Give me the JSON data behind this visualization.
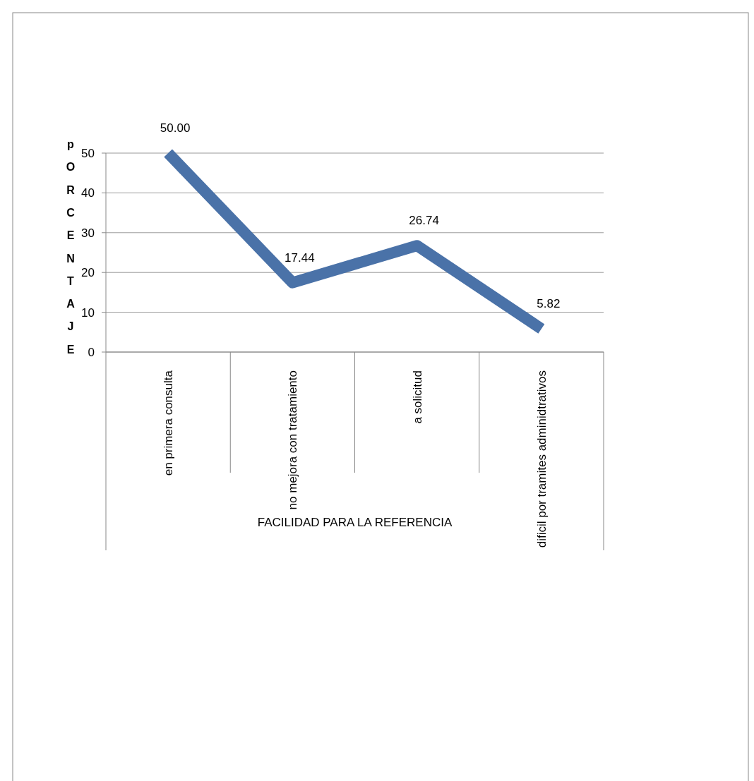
{
  "chart_data": {
    "type": "line",
    "xlabel": "FACILIDAD PARA LA REFERENCIA",
    "ylabel": "pORCENTAJE",
    "categories": [
      "en primera consulta",
      "no mejora con tratamiento",
      "a solicitud",
      "dificil por tramites adminidtrativos"
    ],
    "series": [
      {
        "color": "#4a72a8",
        "values": [
          50,
          17.44,
          26.74,
          5.82
        ],
        "value_labels": [
          "50.00",
          "17.44",
          "26.74",
          "5.82"
        ]
      }
    ],
    "ylim": [
      0,
      50
    ],
    "yticks": [
      0,
      10,
      20,
      30,
      40,
      50
    ],
    "grid": "y",
    "marker": "none"
  }
}
